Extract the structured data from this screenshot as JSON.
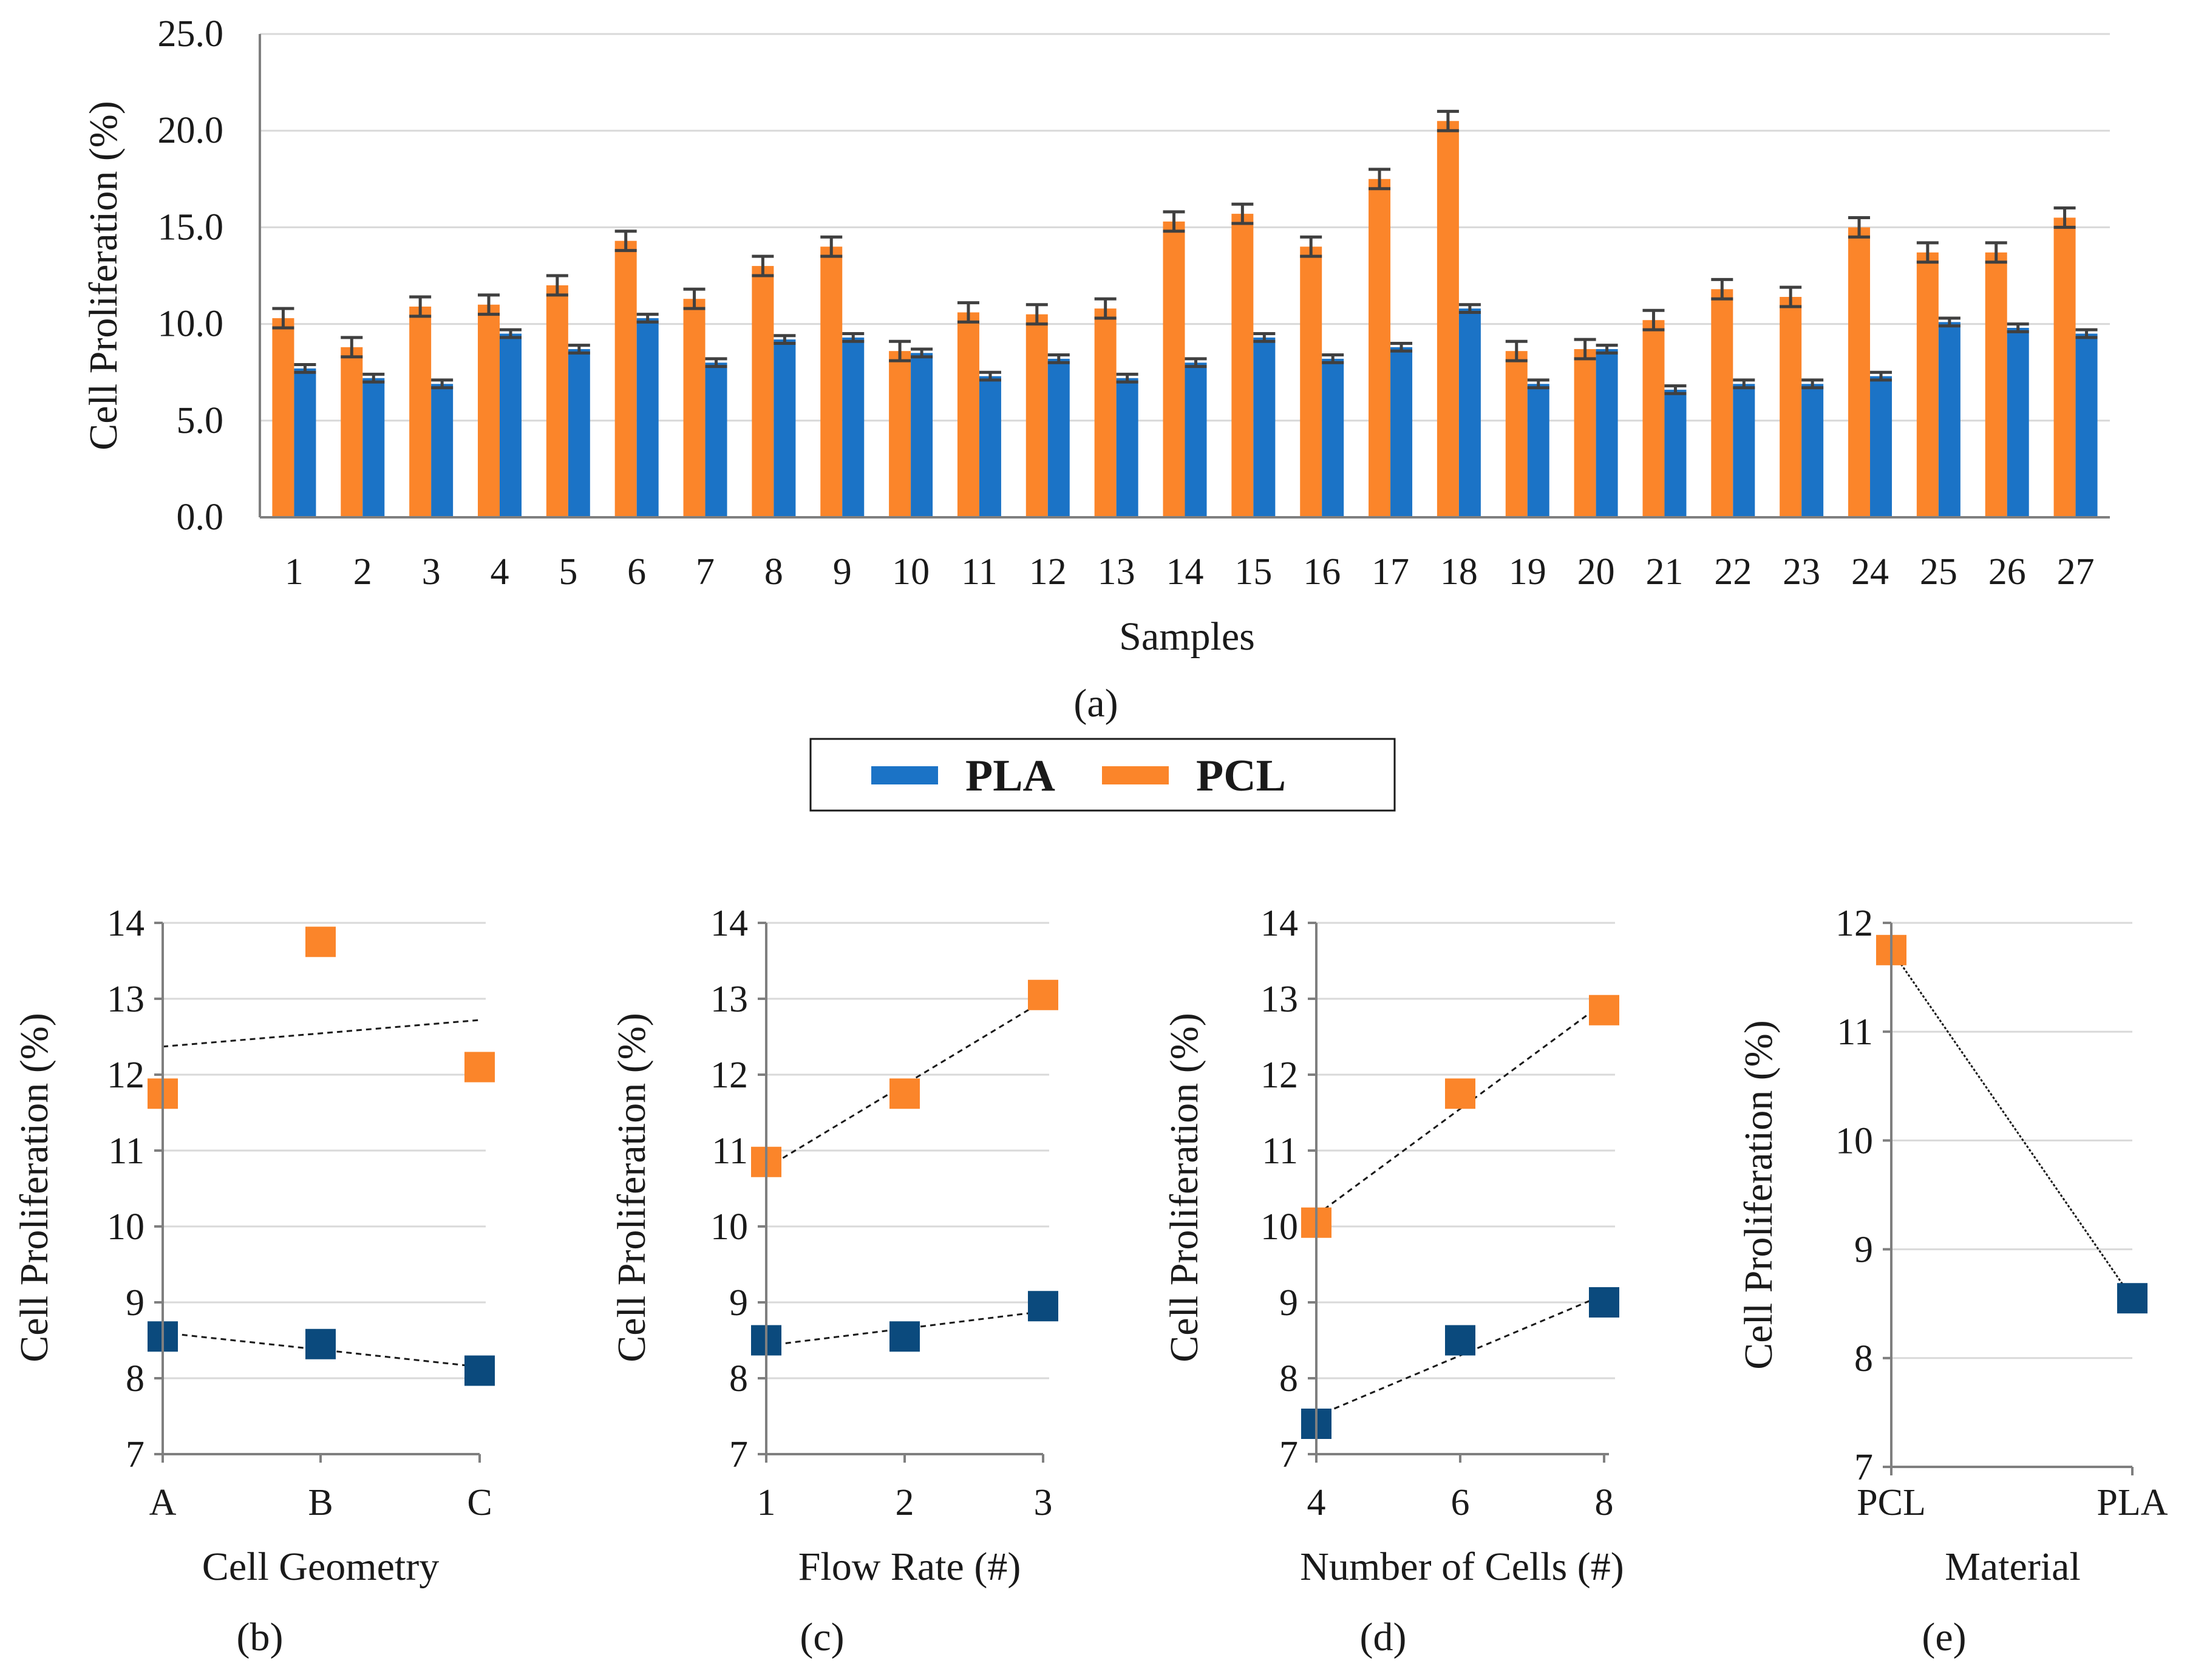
{
  "colors": {
    "PLA": "#1b73c6",
    "PCL": "#fb852a",
    "PLA_marker": "#0b4a7d",
    "PCL_marker": "#fb852a",
    "grid": "#d9d9d9",
    "axis": "#7f7f7f"
  },
  "legend": {
    "items": [
      "PLA",
      "PCL"
    ]
  },
  "chart_data": [
    {
      "id": "a",
      "type": "bar",
      "panel_label": "(a)",
      "xlabel": "Samples",
      "ylabel": "Cell Proliferation (%)",
      "ylim": [
        0,
        25
      ],
      "yticks": [
        "0.0",
        "5.0",
        "10.0",
        "15.0",
        "20.0",
        "25.0"
      ],
      "categories": [
        "1",
        "2",
        "3",
        "4",
        "5",
        "6",
        "7",
        "8",
        "9",
        "10",
        "11",
        "12",
        "13",
        "14",
        "15",
        "16",
        "17",
        "18",
        "19",
        "20",
        "21",
        "22",
        "23",
        "24",
        "25",
        "26",
        "27"
      ],
      "series": [
        {
          "name": "PCL",
          "values": [
            10.3,
            8.8,
            10.9,
            11.0,
            12.0,
            14.3,
            11.3,
            13.0,
            14.0,
            8.6,
            10.6,
            10.5,
            10.8,
            15.3,
            15.7,
            14.0,
            17.5,
            20.5,
            8.6,
            8.7,
            10.2,
            11.8,
            11.4,
            15.0,
            13.7,
            13.7,
            15.5
          ],
          "errors": [
            0.5,
            0.5,
            0.5,
            0.5,
            0.5,
            0.5,
            0.5,
            0.5,
            0.5,
            0.5,
            0.5,
            0.5,
            0.5,
            0.5,
            0.5,
            0.5,
            0.5,
            0.5,
            0.5,
            0.5,
            0.5,
            0.5,
            0.5,
            0.5,
            0.5,
            0.5,
            0.5
          ]
        },
        {
          "name": "PLA",
          "values": [
            7.7,
            7.2,
            6.9,
            9.5,
            8.7,
            10.3,
            8.0,
            9.2,
            9.3,
            8.5,
            7.3,
            8.2,
            7.2,
            8.0,
            9.3,
            8.2,
            8.8,
            10.8,
            6.9,
            8.7,
            6.6,
            6.9,
            6.9,
            7.3,
            10.1,
            9.8,
            9.5
          ],
          "errors": [
            0.2,
            0.2,
            0.2,
            0.2,
            0.2,
            0.2,
            0.2,
            0.2,
            0.2,
            0.2,
            0.2,
            0.2,
            0.2,
            0.2,
            0.2,
            0.2,
            0.2,
            0.2,
            0.2,
            0.2,
            0.2,
            0.2,
            0.2,
            0.2,
            0.2,
            0.2,
            0.2
          ]
        }
      ]
    },
    {
      "id": "b",
      "type": "scatter",
      "panel_label": "(b)",
      "xlabel": "Cell Geometry",
      "ylabel": "Cell Proliferation (%)",
      "ylim": [
        7,
        14
      ],
      "yticks": [
        "7",
        "8",
        "9",
        "10",
        "11",
        "12",
        "13",
        "14"
      ],
      "categories": [
        "A",
        "B",
        "C"
      ],
      "series": [
        {
          "name": "PCL",
          "values": [
            11.75,
            13.75,
            12.1
          ],
          "trend": [
            12.37,
            12.72
          ]
        },
        {
          "name": "PLA",
          "values": [
            8.55,
            8.45,
            8.1
          ],
          "trend": [
            8.6,
            8.15
          ]
        }
      ]
    },
    {
      "id": "c",
      "type": "scatter",
      "panel_label": "(c)",
      "xlabel": "Flow Rate (#)",
      "ylabel": "Cell Proliferation (%)",
      "ylim": [
        7,
        14
      ],
      "yticks": [
        "7",
        "8",
        "9",
        "10",
        "11",
        "12",
        "13",
        "14"
      ],
      "categories": [
        "1",
        "2",
        "3"
      ],
      "series": [
        {
          "name": "PCL",
          "values": [
            10.85,
            11.75,
            13.05
          ],
          "trend": [
            10.77,
            12.97
          ]
        },
        {
          "name": "PLA",
          "values": [
            8.5,
            8.55,
            8.95
          ],
          "trend": [
            8.43,
            8.88
          ]
        }
      ]
    },
    {
      "id": "d",
      "type": "scatter",
      "panel_label": "(d)",
      "xlabel": "Number of Cells (#)",
      "ylabel": "Cell Proliferation (%)",
      "ylim": [
        7,
        14
      ],
      "yticks": [
        "7",
        "8",
        "9",
        "10",
        "11",
        "12",
        "13",
        "14"
      ],
      "categories": [
        "4",
        "6",
        "8"
      ],
      "series": [
        {
          "name": "PCL",
          "values": [
            10.05,
            11.75,
            12.85
          ],
          "trend": [
            10.15,
            12.95
          ]
        },
        {
          "name": "PLA",
          "values": [
            7.4,
            8.5,
            9.0
          ],
          "trend": [
            7.5,
            9.1
          ]
        }
      ]
    },
    {
      "id": "e",
      "type": "scatter",
      "panel_label": "(e)",
      "xlabel": "Material",
      "ylabel": "Cell Proliferation (%)",
      "ylim": [
        7,
        12
      ],
      "yticks": [
        "7",
        "8",
        "9",
        "10",
        "11",
        "12"
      ],
      "categories": [
        "PCL",
        "PLA"
      ],
      "series": [
        {
          "name": "PCL",
          "values": [
            11.75,
            null
          ]
        },
        {
          "name": "PLA",
          "values": [
            null,
            8.55
          ]
        }
      ],
      "connector": [
        11.75,
        8.55
      ]
    }
  ]
}
